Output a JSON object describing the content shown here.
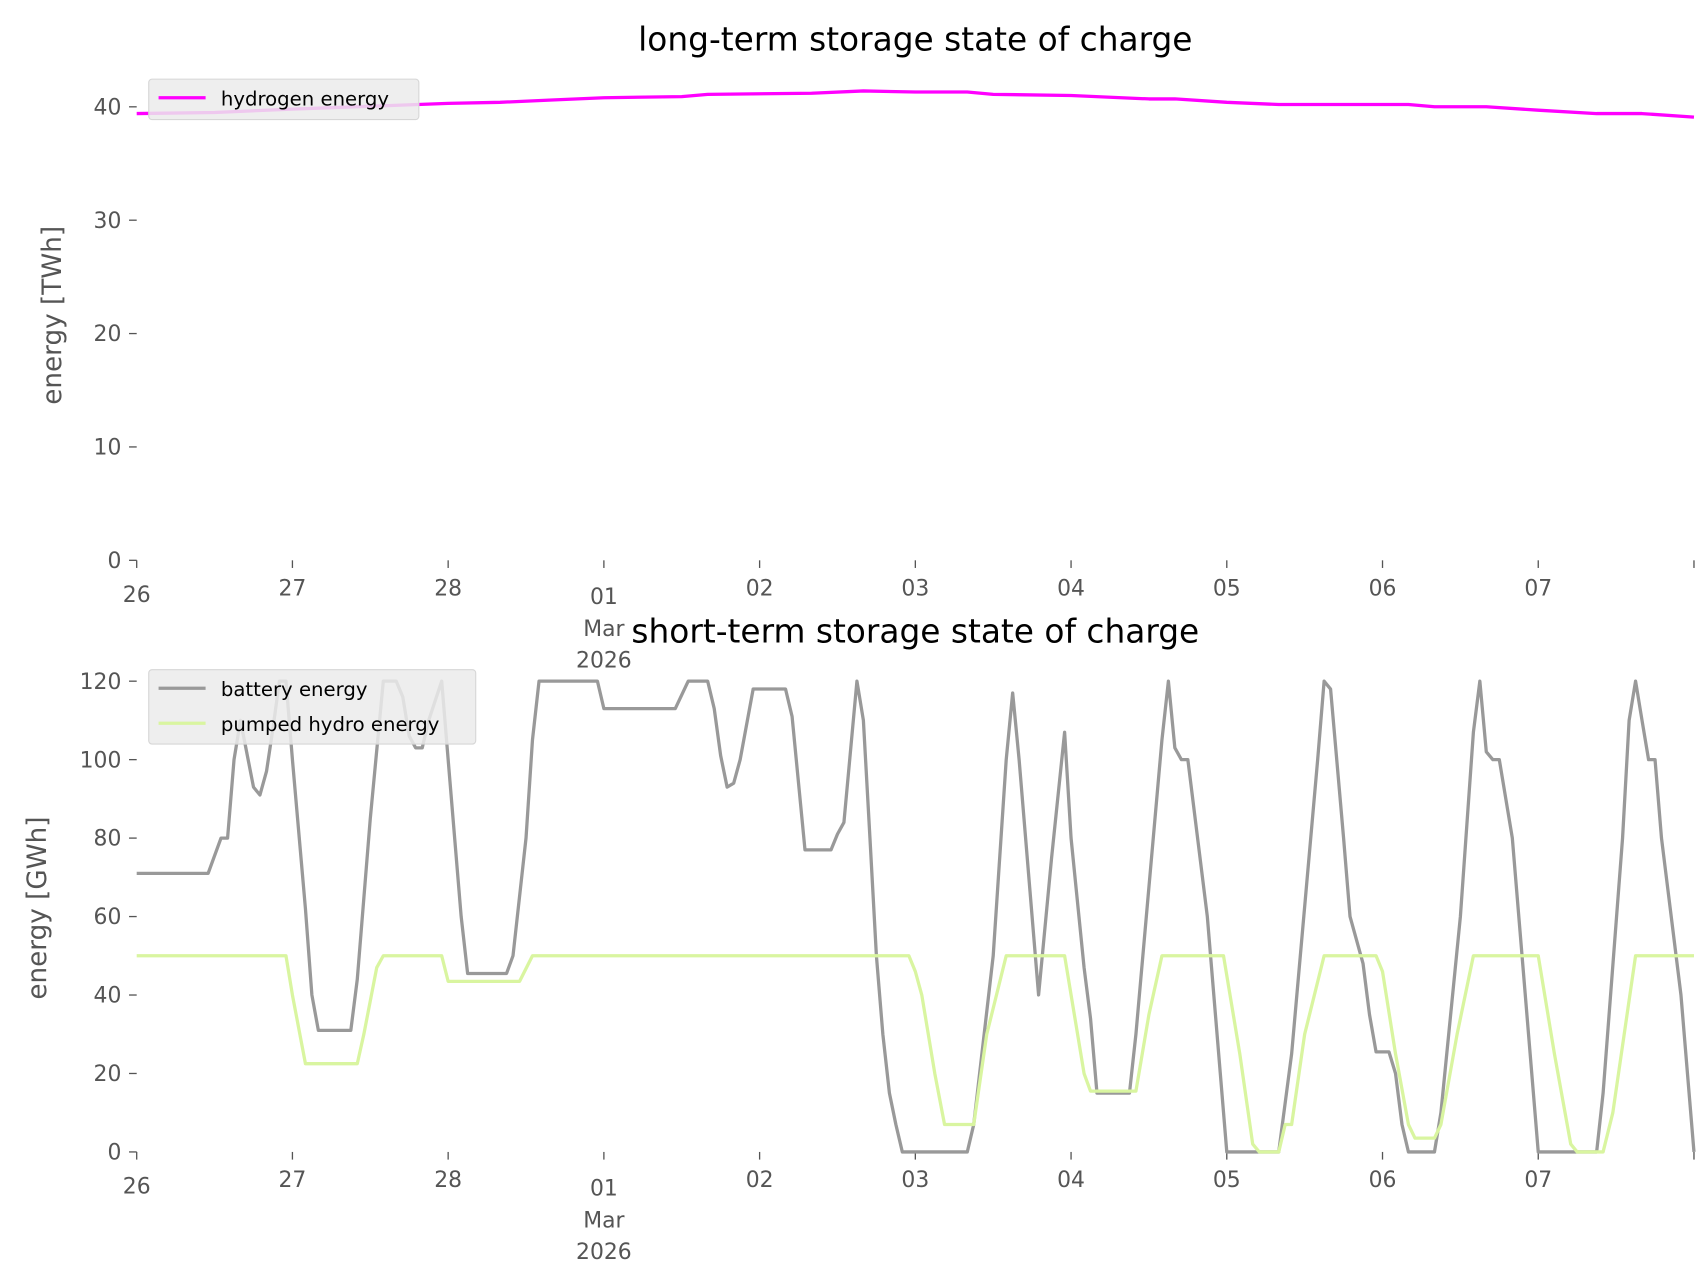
{
  "chart_data": [
    {
      "type": "line",
      "title": "long-term storage state of charge",
      "xlabel": "",
      "ylabel": "energy [TWh]",
      "xlim": [
        "2026-02-26T00:00",
        "2026-03-08T00:00"
      ],
      "ylim": [
        0,
        43.6
      ],
      "yticks": [
        "0",
        "10",
        "20",
        "30",
        "40"
      ],
      "xticks": [
        {
          "date": "2026-02-26T00:00",
          "label": "26"
        },
        {
          "date": "2026-02-27T00:00",
          "label": "27"
        },
        {
          "date": "2026-02-28T00:00",
          "label": "28"
        },
        {
          "date": "2026-03-01T00:00",
          "label": "01",
          "label2": "Mar",
          "label3": "2026"
        },
        {
          "date": "2026-03-02T00:00",
          "label": "02"
        },
        {
          "date": "2026-03-03T00:00",
          "label": "03"
        },
        {
          "date": "2026-03-04T00:00",
          "label": "04"
        },
        {
          "date": "2026-03-05T00:00",
          "label": "05"
        },
        {
          "date": "2026-03-06T00:00",
          "label": "06"
        },
        {
          "date": "2026-03-07T00:00",
          "label": "07"
        },
        {
          "date": "2026-03-08T00:00",
          "label": ""
        }
      ],
      "grid": false,
      "legend_placement": "upper-left",
      "series": [
        {
          "name": "hydrogen energy",
          "color": "#ff00ff",
          "points": [
            [
              "2026-02-26T00:00",
              39.4
            ],
            [
              "2026-02-26T12:00",
              39.5
            ],
            [
              "2026-02-27T00:00",
              39.8
            ],
            [
              "2026-02-28T00:00",
              40.3
            ],
            [
              "2026-02-28T08:00",
              40.4
            ],
            [
              "2026-02-28T16:00",
              40.6
            ],
            [
              "2026-03-01T00:00",
              40.8
            ],
            [
              "2026-03-01T12:00",
              40.9
            ],
            [
              "2026-03-01T16:00",
              41.1
            ],
            [
              "2026-03-02T08:00",
              41.2
            ],
            [
              "2026-03-02T16:00",
              41.4
            ],
            [
              "2026-03-03T00:00",
              41.3
            ],
            [
              "2026-03-03T08:00",
              41.3
            ],
            [
              "2026-03-03T12:00",
              41.1
            ],
            [
              "2026-03-04T00:00",
              41.0
            ],
            [
              "2026-03-04T12:00",
              40.7
            ],
            [
              "2026-03-04T16:00",
              40.7
            ],
            [
              "2026-03-05T00:00",
              40.4
            ],
            [
              "2026-03-05T08:00",
              40.2
            ],
            [
              "2026-03-05T16:00",
              40.2
            ],
            [
              "2026-03-06T04:00",
              40.2
            ],
            [
              "2026-03-06T08:00",
              40.0
            ],
            [
              "2026-03-06T16:00",
              40.0
            ],
            [
              "2026-03-07T00:00",
              39.7
            ],
            [
              "2026-03-07T09:00",
              39.4
            ],
            [
              "2026-03-07T16:00",
              39.4
            ],
            [
              "2026-03-08T00:00",
              39.1
            ]
          ]
        }
      ]
    },
    {
      "type": "line",
      "title": "short-term storage state of charge",
      "xlabel": "",
      "ylabel": "energy [GWh]",
      "xlim": [
        "2026-02-26T00:00",
        "2026-03-08T00:00"
      ],
      "ylim": [
        0,
        126
      ],
      "yticks": [
        "0",
        "20",
        "40",
        "60",
        "80",
        "100",
        "120"
      ],
      "xticks": [
        {
          "date": "2026-02-26T00:00",
          "label": "26"
        },
        {
          "date": "2026-02-27T00:00",
          "label": "27"
        },
        {
          "date": "2026-02-28T00:00",
          "label": "28"
        },
        {
          "date": "2026-03-01T00:00",
          "label": "01",
          "label2": "Mar",
          "label3": "2026"
        },
        {
          "date": "2026-03-02T00:00",
          "label": "02"
        },
        {
          "date": "2026-03-03T00:00",
          "label": "03"
        },
        {
          "date": "2026-03-04T00:00",
          "label": "04"
        },
        {
          "date": "2026-03-05T00:00",
          "label": "05"
        },
        {
          "date": "2026-03-06T00:00",
          "label": "06"
        },
        {
          "date": "2026-03-07T00:00",
          "label": "07"
        },
        {
          "date": "2026-03-08T00:00",
          "label": ""
        }
      ],
      "grid": false,
      "legend_placement": "upper-left",
      "series": [
        {
          "name": "battery energy",
          "color": "#999999",
          "points": [
            [
              "2026-02-26T00:00",
              71
            ],
            [
              "2026-02-26T11:00",
              71
            ],
            [
              "2026-02-26T13:00",
              80
            ],
            [
              "2026-02-26T14:00",
              80
            ],
            [
              "2026-02-26T15:00",
              100
            ],
            [
              "2026-02-26T16:00",
              110
            ],
            [
              "2026-02-26T18:00",
              93
            ],
            [
              "2026-02-26T19:00",
              91
            ],
            [
              "2026-02-26T20:00",
              97
            ],
            [
              "2026-02-26T21:00",
              108
            ],
            [
              "2026-02-26T22:00",
              120
            ],
            [
              "2026-02-26T23:00",
              120
            ],
            [
              "2026-02-27T00:00",
              100
            ],
            [
              "2026-02-27T02:00",
              62
            ],
            [
              "2026-02-27T03:00",
              40
            ],
            [
              "2026-02-27T04:00",
              31
            ],
            [
              "2026-02-27T09:00",
              31
            ],
            [
              "2026-02-27T10:00",
              44
            ],
            [
              "2026-02-27T12:00",
              85
            ],
            [
              "2026-02-27T14:00",
              120
            ],
            [
              "2026-02-27T16:00",
              120
            ],
            [
              "2026-02-27T17:00",
              116
            ],
            [
              "2026-02-27T18:00",
              106
            ],
            [
              "2026-02-27T19:00",
              103
            ],
            [
              "2026-02-27T20:00",
              103
            ],
            [
              "2026-02-27T21:00",
              110
            ],
            [
              "2026-02-27T23:00",
              120
            ],
            [
              "2026-02-28T00:00",
              100
            ],
            [
              "2026-02-28T02:00",
              60
            ],
            [
              "2026-02-28T03:00",
              45.5
            ],
            [
              "2026-02-28T09:00",
              45.5
            ],
            [
              "2026-02-28T10:00",
              50
            ],
            [
              "2026-02-28T12:00",
              80
            ],
            [
              "2026-02-28T13:00",
              105
            ],
            [
              "2026-02-28T14:00",
              120
            ],
            [
              "2026-02-28T23:00",
              120
            ],
            [
              "2026-03-01T00:00",
              113
            ],
            [
              "2026-03-01T11:00",
              113
            ],
            [
              "2026-03-01T13:00",
              120
            ],
            [
              "2026-03-01T16:00",
              120
            ],
            [
              "2026-03-01T17:00",
              113
            ],
            [
              "2026-03-01T18:00",
              101
            ],
            [
              "2026-03-01T19:00",
              93
            ],
            [
              "2026-03-01T20:00",
              94
            ],
            [
              "2026-03-01T21:00",
              100
            ],
            [
              "2026-03-01T23:00",
              118
            ],
            [
              "2026-03-02T04:00",
              118
            ],
            [
              "2026-03-02T05:00",
              111
            ],
            [
              "2026-03-02T07:00",
              77
            ],
            [
              "2026-03-02T11:00",
              77
            ],
            [
              "2026-03-02T12:00",
              81
            ],
            [
              "2026-03-02T13:00",
              84
            ],
            [
              "2026-03-02T15:00",
              120
            ],
            [
              "2026-03-02T16:00",
              110
            ],
            [
              "2026-03-02T17:00",
              80
            ],
            [
              "2026-03-02T18:00",
              50
            ],
            [
              "2026-03-02T19:00",
              30
            ],
            [
              "2026-03-02T20:00",
              15
            ],
            [
              "2026-03-02T21:00",
              7
            ],
            [
              "2026-03-02T22:00",
              0
            ],
            [
              "2026-03-03T08:00",
              0
            ],
            [
              "2026-03-03T09:00",
              7
            ],
            [
              "2026-03-03T12:00",
              50
            ],
            [
              "2026-03-03T14:00",
              100
            ],
            [
              "2026-03-03T15:00",
              117
            ],
            [
              "2026-03-03T16:00",
              100
            ],
            [
              "2026-03-03T19:00",
              40
            ],
            [
              "2026-03-03T21:00",
              75
            ],
            [
              "2026-03-03T23:00",
              107
            ],
            [
              "2026-03-04T00:00",
              80
            ],
            [
              "2026-03-04T02:00",
              47
            ],
            [
              "2026-03-04T03:00",
              34
            ],
            [
              "2026-03-04T04:00",
              15
            ],
            [
              "2026-03-04T09:00",
              15
            ],
            [
              "2026-03-04T10:00",
              30
            ],
            [
              "2026-03-04T14:00",
              105
            ],
            [
              "2026-03-04T15:00",
              120
            ],
            [
              "2026-03-04T16:00",
              103
            ],
            [
              "2026-03-04T17:00",
              100
            ],
            [
              "2026-03-04T18:00",
              100
            ],
            [
              "2026-03-04T21:00",
              60
            ],
            [
              "2026-03-04T24:00",
              0
            ],
            [
              "2026-03-05T08:00",
              0
            ],
            [
              "2026-03-05T10:00",
              25
            ],
            [
              "2026-03-05T14:00",
              100
            ],
            [
              "2026-03-05T15:00",
              120
            ],
            [
              "2026-03-05T16:00",
              118
            ],
            [
              "2026-03-05T18:00",
              80
            ],
            [
              "2026-03-05T19:00",
              60
            ],
            [
              "2026-03-05T21:00",
              48
            ],
            [
              "2026-03-05T22:00",
              35
            ],
            [
              "2026-03-05T23:00",
              25.5
            ],
            [
              "2026-03-06T01:00",
              25.5
            ],
            [
              "2026-03-06T02:00",
              20
            ],
            [
              "2026-03-06T03:00",
              7
            ],
            [
              "2026-03-06T04:00",
              0
            ],
            [
              "2026-03-06T08:00",
              0
            ],
            [
              "2026-03-06T09:00",
              10
            ],
            [
              "2026-03-06T12:00",
              60
            ],
            [
              "2026-03-06T14:00",
              107
            ],
            [
              "2026-03-06T15:00",
              120
            ],
            [
              "2026-03-06T16:00",
              102
            ],
            [
              "2026-03-06T17:00",
              100
            ],
            [
              "2026-03-06T18:00",
              100
            ],
            [
              "2026-03-06T20:00",
              80
            ],
            [
              "2026-03-07T00:00",
              0
            ],
            [
              "2026-03-07T09:00",
              0
            ],
            [
              "2026-03-07T10:00",
              15
            ],
            [
              "2026-03-07T13:00",
              80
            ],
            [
              "2026-03-07T14:00",
              110
            ],
            [
              "2026-03-07T15:00",
              120
            ],
            [
              "2026-03-07T16:00",
              110
            ],
            [
              "2026-03-07T17:00",
              100
            ],
            [
              "2026-03-07T18:00",
              100
            ],
            [
              "2026-03-07T19:00",
              80
            ],
            [
              "2026-03-07T22:00",
              40
            ],
            [
              "2026-03-08T00:00",
              0
            ]
          ]
        },
        {
          "name": "pumped hydro energy",
          "color": "#d9f5a0",
          "points": [
            [
              "2026-02-26T00:00",
              50
            ],
            [
              "2026-02-26T23:00",
              50
            ],
            [
              "2026-02-27T00:00",
              40
            ],
            [
              "2026-02-27T02:00",
              22.5
            ],
            [
              "2026-02-27T10:00",
              22.5
            ],
            [
              "2026-02-27T11:00",
              30
            ],
            [
              "2026-02-27T13:00",
              47
            ],
            [
              "2026-02-27T14:00",
              50
            ],
            [
              "2026-02-27T23:00",
              50
            ],
            [
              "2026-02-28T00:00",
              43.5
            ],
            [
              "2026-02-28T11:00",
              43.5
            ],
            [
              "2026-02-28T13:00",
              50
            ],
            [
              "2026-03-02T23:00",
              50
            ],
            [
              "2026-03-03T00:00",
              46
            ],
            [
              "2026-03-03T01:00",
              40
            ],
            [
              "2026-03-03T03:00",
              20
            ],
            [
              "2026-03-03T04:30",
              7
            ],
            [
              "2026-03-03T09:00",
              7
            ],
            [
              "2026-03-03T11:00",
              30
            ],
            [
              "2026-03-03T14:00",
              50
            ],
            [
              "2026-03-03T23:00",
              50
            ],
            [
              "2026-03-04T00:30",
              35
            ],
            [
              "2026-03-04T02:00",
              20
            ],
            [
              "2026-03-04T03:00",
              15.5
            ],
            [
              "2026-03-04T10:00",
              15.5
            ],
            [
              "2026-03-04T12:00",
              35
            ],
            [
              "2026-03-04T14:00",
              50
            ],
            [
              "2026-03-04T23:30",
              50
            ],
            [
              "2026-03-05T02:00",
              25
            ],
            [
              "2026-03-05T04:00",
              2
            ],
            [
              "2026-03-05T05:00",
              0
            ],
            [
              "2026-03-05T08:00",
              0
            ],
            [
              "2026-03-05T09:00",
              7
            ],
            [
              "2026-03-05T10:00",
              7
            ],
            [
              "2026-03-05T12:00",
              30
            ],
            [
              "2026-03-05T15:00",
              50
            ],
            [
              "2026-03-05T23:00",
              50
            ],
            [
              "2026-03-06T00:00",
              46
            ],
            [
              "2026-03-06T02:00",
              25
            ],
            [
              "2026-03-06T04:00",
              7
            ],
            [
              "2026-03-06T05:00",
              3.5
            ],
            [
              "2026-03-06T08:00",
              3.5
            ],
            [
              "2026-03-06T09:00",
              7
            ],
            [
              "2026-03-06T11:30",
              30
            ],
            [
              "2026-03-06T14:00",
              50
            ],
            [
              "2026-03-07T00:00",
              50
            ],
            [
              "2026-03-07T02:30",
              25
            ],
            [
              "2026-03-07T05:00",
              2
            ],
            [
              "2026-03-07T06:00",
              0
            ],
            [
              "2026-03-07T10:00",
              0
            ],
            [
              "2026-03-07T11:30",
              10
            ],
            [
              "2026-03-07T15:00",
              50
            ],
            [
              "2026-03-08T00:00",
              50
            ]
          ]
        }
      ]
    }
  ]
}
